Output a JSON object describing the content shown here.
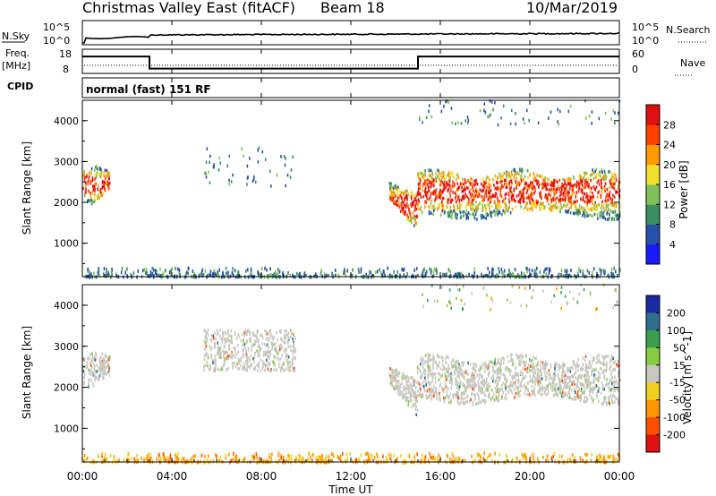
{
  "header": {
    "title": "Christmas Valley East (fitACF)",
    "beam": "Beam 18",
    "date": "10/Mar/2019"
  },
  "noise_panel": {
    "left_label": "N.Sky",
    "right_label": "N.Search",
    "tick_high": "10^5",
    "tick_low": "10^0"
  },
  "freq_panel": {
    "left_label": "Freq.",
    "left_unit": "[MHz]",
    "left_ticks": [
      "18",
      "8"
    ],
    "right_label": "Nave",
    "right_ticks": [
      "60",
      "0"
    ],
    "freq_steps": [
      [
        0,
        15
      ],
      [
        3,
        15
      ],
      [
        3,
        10
      ],
      [
        15,
        10
      ],
      [
        15,
        15
      ],
      [
        24,
        15
      ]
    ]
  },
  "cpid_panel": {
    "label": "CPID",
    "program": "normal (fast) 151 RF"
  },
  "x_axis": {
    "label": "Time UT",
    "ticks": [
      "00:00",
      "04:00",
      "08:00",
      "12:00",
      "16:00",
      "20:00",
      "00:00"
    ]
  },
  "chart_data": [
    {
      "type": "heatmap",
      "panel": "power",
      "ylabel": "Slant Range [km]",
      "yticks": [
        "1000",
        "2000",
        "3000",
        "4000"
      ],
      "ylim": [
        180,
        4500
      ],
      "xlim": [
        0,
        24
      ],
      "colorbar": {
        "label": "Power [dB]",
        "ticks": [
          "4",
          "8",
          "12",
          "16",
          "20",
          "24",
          "28"
        ],
        "colors": [
          "#1a1aff",
          "#2850a8",
          "#3c8c64",
          "#7fc05a",
          "#f0e030",
          "#ff9a00",
          "#ff4000",
          "#e01010"
        ]
      },
      "scatter_regions": [
        {
          "t": [
            0.0,
            1.2
          ],
          "r": [
            1950,
            2900
          ],
          "level": "high"
        },
        {
          "t": [
            5.4,
            9.5
          ],
          "r": [
            2400,
            3400
          ],
          "level": "low"
        },
        {
          "t": [
            13.7,
            14.95
          ],
          "r": [
            1300,
            2500
          ],
          "level": "high"
        },
        {
          "t": [
            14.95,
            24.0
          ],
          "r": [
            1650,
            2900
          ],
          "level": "high"
        },
        {
          "t": [
            15.0,
            24.0
          ],
          "r": [
            3900,
            4500
          ],
          "level": "low"
        },
        {
          "t": [
            0.0,
            24.0
          ],
          "r": [
            180,
            400
          ],
          "level": "low"
        }
      ]
    },
    {
      "type": "heatmap",
      "panel": "velocity",
      "ylabel": "Slant Range [km]",
      "yticks": [
        "1000",
        "2000",
        "3000",
        "4000"
      ],
      "ylim": [
        180,
        4500
      ],
      "xlim": [
        0,
        24
      ],
      "colorbar": {
        "label": "Velocity [m s^-1]",
        "ticks": [
          "200",
          "100",
          "50",
          "15",
          "-15",
          "-50",
          "-100",
          "-200"
        ],
        "colors": [
          "#1a2aa0",
          "#2e6e8e",
          "#3aa050",
          "#88cc44",
          "#c8c8c0",
          "#f0d020",
          "#ff9800",
          "#ff5000",
          "#e01010"
        ]
      },
      "scatter_regions": [
        {
          "t": [
            0.0,
            1.2
          ],
          "r": [
            1950,
            2900
          ],
          "level": "ground"
        },
        {
          "t": [
            5.4,
            9.5
          ],
          "r": [
            2400,
            3400
          ],
          "level": "ground"
        },
        {
          "t": [
            13.7,
            14.95
          ],
          "r": [
            1300,
            2500
          ],
          "level": "ground"
        },
        {
          "t": [
            14.95,
            24.0
          ],
          "r": [
            1650,
            2900
          ],
          "level": "ground"
        },
        {
          "t": [
            15.0,
            24.0
          ],
          "r": [
            3900,
            4500
          ],
          "level": "mixed"
        },
        {
          "t": [
            0.0,
            24.0
          ],
          "r": [
            180,
            400
          ],
          "level": "negative"
        }
      ]
    }
  ]
}
